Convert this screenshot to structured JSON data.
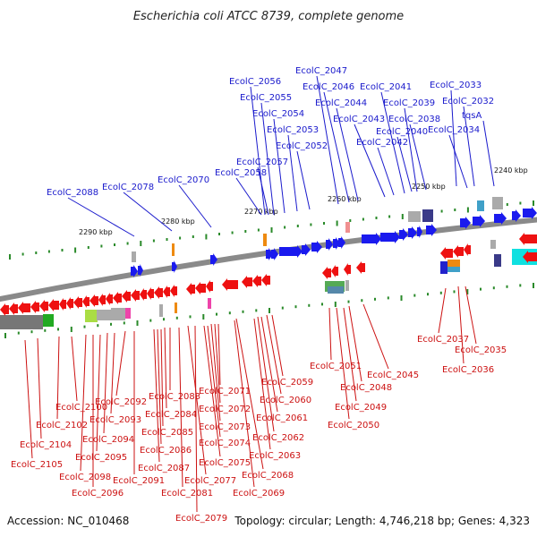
{
  "title": "Escherichia coli ATCC 8739, complete genome",
  "footer": {
    "accession": "Accession: NC_010468",
    "topology": "Topology: circular; Length: 4,746,218 bp; Genes: 4,323"
  },
  "colors": {
    "forward": "#1a1aee",
    "reverse": "#ee1111",
    "forward_label": "#1a1acc",
    "reverse_label": "#cc1111",
    "backbone": "#8a8a8a",
    "tick": "#2a8a2a"
  },
  "ticks": [
    "2290 kbp",
    "2280 kbp",
    "2270 kbp",
    "2260 kbp",
    "2250 kbp",
    "2240 kbp"
  ],
  "forward_labels": [
    "EcolC_2033",
    "EcolC_2032",
    "tqsA",
    "EcolC_2034",
    "EcolC_2038",
    "EcolC_2039",
    "EcolC_2040",
    "EcolC_2041",
    "EcolC_2042",
    "EcolC_2043",
    "EcolC_2044",
    "EcolC_2046",
    "EcolC_2047",
    "EcolC_2052",
    "EcolC_2053",
    "EcolC_2054",
    "EcolC_2055",
    "EcolC_2056",
    "EcolC_2057",
    "EcolC_2058",
    "EcolC_2070",
    "EcolC_2078",
    "EcolC_2088"
  ],
  "reverse_labels": [
    "EcolC_2037",
    "EcolC_2035",
    "EcolC_2036",
    "EcolC_2051",
    "EcolC_2045",
    "EcolC_2048",
    "EcolC_2049",
    "EcolC_2050",
    "EcolC_2059",
    "EcolC_2060",
    "EcolC_2061",
    "EcolC_2062",
    "EcolC_2063",
    "EcolC_2068",
    "EcolC_2069",
    "EcolC_2071",
    "EcolC_2072",
    "EcolC_2073",
    "EcolC_2074",
    "EcolC_2075",
    "EcolC_2077",
    "EcolC_2079",
    "EcolC_2081",
    "EcolC_2083",
    "EcolC_2084",
    "EcolC_2085",
    "EcolC_2086",
    "EcolC_2087",
    "EcolC_2091",
    "EcolC_2092",
    "EcolC_2093",
    "EcolC_2094",
    "EcolC_2095",
    "EcolC_2096",
    "EcolC_2098",
    "EcolC_2100",
    "EcolC_2102",
    "EcolC_2104",
    "EcolC_2105"
  ]
}
